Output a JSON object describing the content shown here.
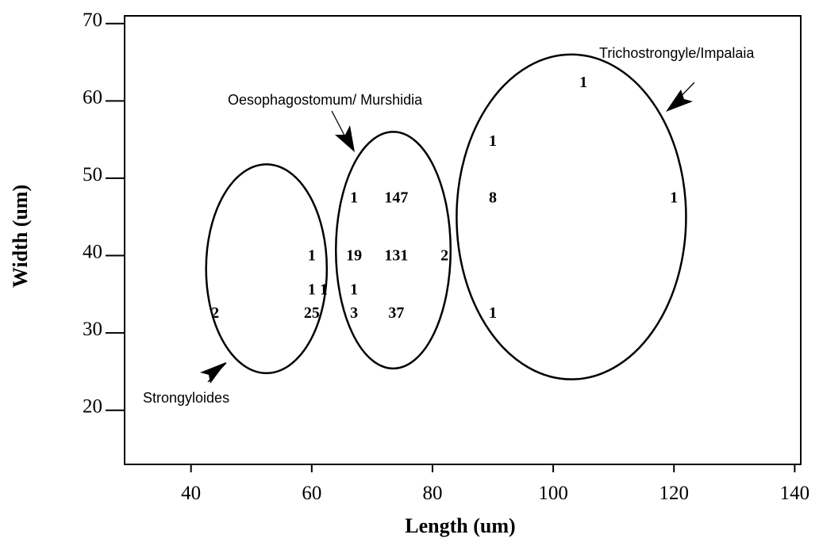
{
  "chart_data": {
    "type": "scatter",
    "xlabel": "Length (um)",
    "ylabel": "Width (um)",
    "xlim": [
      29,
      141
    ],
    "ylim": [
      13,
      71
    ],
    "xticks": [
      40,
      60,
      80,
      100,
      120,
      140
    ],
    "yticks": [
      20,
      30,
      40,
      50,
      60,
      70
    ],
    "grid": false,
    "points": [
      {
        "x": 44,
        "y": 32.7,
        "label": "2"
      },
      {
        "x": 60,
        "y": 32.7,
        "label": "25"
      },
      {
        "x": 60,
        "y": 40.1,
        "label": "1"
      },
      {
        "x": 60,
        "y": 35.7,
        "label": "1"
      },
      {
        "x": 62,
        "y": 35.7,
        "label": "1"
      },
      {
        "x": 67,
        "y": 47.6,
        "label": "1"
      },
      {
        "x": 74,
        "y": 47.6,
        "label": "147"
      },
      {
        "x": 67,
        "y": 40.1,
        "label": "19"
      },
      {
        "x": 74,
        "y": 40.1,
        "label": "131"
      },
      {
        "x": 82,
        "y": 40.1,
        "label": "2"
      },
      {
        "x": 67,
        "y": 35.7,
        "label": "1"
      },
      {
        "x": 67,
        "y": 32.7,
        "label": "3"
      },
      {
        "x": 74,
        "y": 32.7,
        "label": "37"
      },
      {
        "x": 105,
        "y": 62.5,
        "label": "1"
      },
      {
        "x": 90,
        "y": 54.9,
        "label": "1"
      },
      {
        "x": 90,
        "y": 47.6,
        "label": "8"
      },
      {
        "x": 120,
        "y": 47.6,
        "label": "1"
      },
      {
        "x": 90,
        "y": 32.7,
        "label": "1"
      }
    ],
    "groups": [
      {
        "name": "Strongyloides",
        "center": [
          52.5,
          38.3
        ],
        "radius": [
          10,
          13.5
        ]
      },
      {
        "name": "Oesophagostomum/ Murshidia",
        "center": [
          73.5,
          40.7
        ],
        "radius": [
          9.5,
          15.3
        ]
      },
      {
        "name": "Trichostrongyle/Impalaia",
        "center": [
          103,
          45
        ],
        "radius": [
          19,
          21
        ]
      }
    ]
  }
}
